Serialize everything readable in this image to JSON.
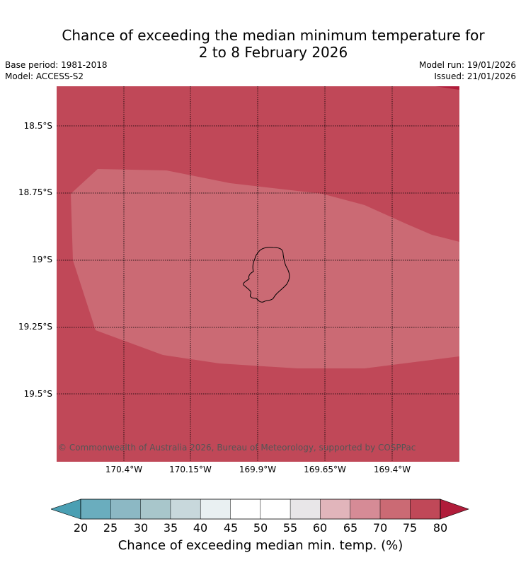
{
  "title": {
    "line1": "Chance of exceeding the median minimum temperature for",
    "line2": "2 to 8 February 2026"
  },
  "meta": {
    "base_period": "Base period: 1981-2018",
    "model": "Model: ACCESS-S2",
    "model_run": "Model run: 19/01/2026",
    "issued": "Issued: 21/01/2026"
  },
  "map": {
    "lat_labels": [
      "18.5°S",
      "18.75°S",
      "19°S",
      "19.25°S",
      "19.5°S"
    ],
    "lon_labels": [
      "170.4°W",
      "170.15°W",
      "169.9°W",
      "169.65°W",
      "169.4°W"
    ],
    "copyright": "© Commonwealth of Australia 2026, Bureau of Meteorology, supported by COSPPac",
    "colors": {
      "class_75_80": "#c04858",
      "class_70_75": "#cb6a74",
      "above_80": "#b01c3a",
      "coastline": "#000000",
      "gridline": "#000000"
    }
  },
  "colorbar": {
    "ticks": [
      "20",
      "25",
      "30",
      "35",
      "40",
      "45",
      "50",
      "55",
      "60",
      "65",
      "70",
      "75",
      "80"
    ],
    "colors": [
      "#4a9fb3",
      "#6aadbe",
      "#8cb8c4",
      "#a8c6cb",
      "#c8d8dc",
      "#e9f0f2",
      "#ffffff",
      "#ffffff",
      "#e8e6e8",
      "#e1b5bb",
      "#d68b96",
      "#cb6a74",
      "#c04858",
      "#b01c3a"
    ],
    "label": "Chance of exceeding median min. temp. (%)"
  }
}
